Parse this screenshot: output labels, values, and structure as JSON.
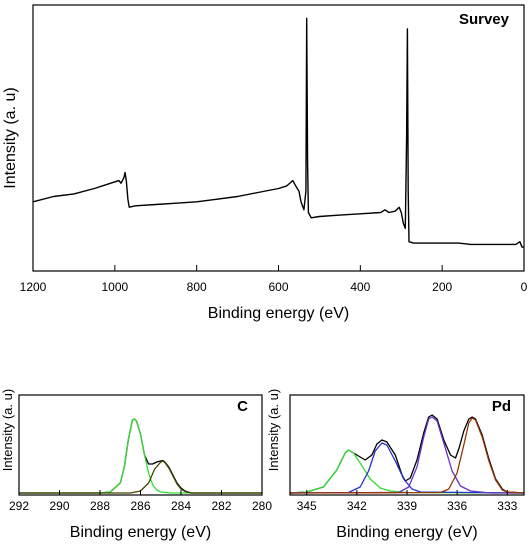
{
  "chart_data": [
    {
      "type": "line",
      "title": "Survey",
      "xlabel": "Binding energy (eV)",
      "ylabel": "Intensity (a. u)",
      "xlim": [
        1200,
        0
      ],
      "ylim": [
        0,
        100
      ],
      "x_reversed": true,
      "xticks": [
        1200,
        1000,
        800,
        600,
        400,
        200,
        0
      ],
      "series": [
        {
          "color": "#000000",
          "points": [
            [
              1200,
              26
            ],
            [
              1150,
              28
            ],
            [
              1100,
              29
            ],
            [
              1050,
              31
            ],
            [
              1010,
              33
            ],
            [
              990,
              34
            ],
            [
              985,
              33
            ],
            [
              978,
              35
            ],
            [
              975,
              37
            ],
            [
              972,
              34
            ],
            [
              968,
              27
            ],
            [
              965,
              24
            ],
            [
              950,
              24.5
            ],
            [
              900,
              25
            ],
            [
              850,
              25.5
            ],
            [
              800,
              26
            ],
            [
              750,
              27
            ],
            [
              700,
              28
            ],
            [
              650,
              29.5
            ],
            [
              600,
              31
            ],
            [
              580,
              32
            ],
            [
              565,
              34
            ],
            [
              558,
              32
            ],
            [
              550,
              30
            ],
            [
              545,
              26
            ],
            [
              538,
              23
            ],
            [
              533,
              30
            ],
            [
              531,
              95
            ],
            [
              529,
              40
            ],
            [
              527,
              22
            ],
            [
              520,
              20
            ],
            [
              500,
              20.5
            ],
            [
              450,
              21
            ],
            [
              400,
              21.5
            ],
            [
              350,
              22
            ],
            [
              340,
              23
            ],
            [
              330,
              22
            ],
            [
              315,
              22.5
            ],
            [
              305,
              24
            ],
            [
              300,
              22
            ],
            [
              295,
              18
            ],
            [
              290,
              16
            ],
            [
              287,
              50
            ],
            [
              285,
              91
            ],
            [
              283,
              30
            ],
            [
              281,
              11
            ],
            [
              270,
              10.5
            ],
            [
              250,
              10.5
            ],
            [
              200,
              10.5
            ],
            [
              160,
              10.5
            ],
            [
              130,
              10
            ],
            [
              100,
              10
            ],
            [
              50,
              10
            ],
            [
              20,
              10
            ],
            [
              10,
              11
            ],
            [
              5,
              9
            ],
            [
              0,
              9
            ]
          ]
        }
      ]
    },
    {
      "type": "line",
      "title": "C",
      "xlabel": "Binding energy (eV)",
      "ylabel": "Intensity (a. u)",
      "xlim": [
        292,
        280
      ],
      "ylim": [
        0,
        100
      ],
      "x_reversed": true,
      "xticks": [
        292,
        290,
        288,
        286,
        284,
        282,
        280
      ],
      "series": [
        {
          "color": "#000000",
          "points": [
            [
              292,
              2
            ],
            [
              289,
              2
            ],
            [
              288,
              2
            ],
            [
              287.5,
              3
            ],
            [
              287,
              12
            ],
            [
              286.8,
              28
            ],
            [
              286.6,
              55
            ],
            [
              286.4,
              75
            ],
            [
              286.3,
              76
            ],
            [
              286.2,
              74
            ],
            [
              286,
              61
            ],
            [
              285.8,
              40
            ],
            [
              285.6,
              31
            ],
            [
              285.4,
              31
            ],
            [
              285.2,
              33
            ],
            [
              285,
              34
            ],
            [
              284.9,
              34.5
            ],
            [
              284.8,
              33
            ],
            [
              284.6,
              28
            ],
            [
              284.4,
              20
            ],
            [
              284.2,
              12
            ],
            [
              284,
              7
            ],
            [
              283.8,
              4
            ],
            [
              283.5,
              2
            ],
            [
              283,
              2
            ],
            [
              280,
              2
            ]
          ]
        },
        {
          "color": "#33dd33",
          "points": [
            [
              292,
              2
            ],
            [
              288,
              2
            ],
            [
              287.5,
              3
            ],
            [
              287,
              12
            ],
            [
              286.8,
              28
            ],
            [
              286.6,
              55
            ],
            [
              286.4,
              75
            ],
            [
              286.3,
              76
            ],
            [
              286.2,
              74
            ],
            [
              286,
              61
            ],
            [
              285.8,
              40
            ],
            [
              285.6,
              22
            ],
            [
              285.4,
              10
            ],
            [
              285.2,
              5
            ],
            [
              285,
              3
            ],
            [
              284.5,
              2
            ],
            [
              280,
              2
            ]
          ]
        },
        {
          "color": "#444400",
          "points": [
            [
              292,
              2
            ],
            [
              286.5,
              2
            ],
            [
              286,
              4
            ],
            [
              285.6,
              12
            ],
            [
              285.3,
              26
            ],
            [
              285,
              33
            ],
            [
              284.9,
              34
            ],
            [
              284.8,
              32.5
            ],
            [
              284.6,
              27
            ],
            [
              284.4,
              19
            ],
            [
              284.2,
              11
            ],
            [
              284,
              6
            ],
            [
              283.8,
              3.5
            ],
            [
              283.5,
              2
            ],
            [
              280,
              2
            ]
          ]
        }
      ]
    },
    {
      "type": "line",
      "title": "Pd",
      "xlabel": "Binding energy (eV)",
      "ylabel": "Intensity (a. u)",
      "xlim": [
        346,
        332
      ],
      "ylim": [
        0,
        100
      ],
      "x_reversed": true,
      "xticks": [
        345,
        342,
        339,
        336,
        333
      ],
      "series": [
        {
          "color": "#000000",
          "points": [
            [
              346,
              2
            ],
            [
              345,
              3
            ],
            [
              344,
              8
            ],
            [
              343.2,
              25
            ],
            [
              342.7,
              42
            ],
            [
              342.5,
              45
            ],
            [
              342.2,
              42
            ],
            [
              341.5,
              35
            ],
            [
              341.1,
              40
            ],
            [
              340.8,
              51
            ],
            [
              340.5,
              55
            ],
            [
              340.2,
              53
            ],
            [
              339.7,
              40
            ],
            [
              339.3,
              20
            ],
            [
              339.1,
              14
            ],
            [
              338.8,
              17
            ],
            [
              338.4,
              35
            ],
            [
              338,
              62
            ],
            [
              337.7,
              78
            ],
            [
              337.5,
              80
            ],
            [
              337.2,
              76
            ],
            [
              336.8,
              55
            ],
            [
              336.4,
              40
            ],
            [
              336.1,
              37
            ],
            [
              335.9,
              46
            ],
            [
              335.6,
              64
            ],
            [
              335.3,
              76
            ],
            [
              335.1,
              78
            ],
            [
              334.9,
              76
            ],
            [
              334.5,
              60
            ],
            [
              334.1,
              36
            ],
            [
              333.7,
              16
            ],
            [
              333.3,
              6
            ],
            [
              333,
              3
            ],
            [
              332,
              2
            ]
          ]
        },
        {
          "color": "#33dd33",
          "points": [
            [
              346,
              2
            ],
            [
              345,
              3
            ],
            [
              344,
              8
            ],
            [
              343.2,
              25
            ],
            [
              342.7,
              42
            ],
            [
              342.5,
              45
            ],
            [
              342.2,
              42
            ],
            [
              341.8,
              32
            ],
            [
              341.2,
              16
            ],
            [
              340.6,
              7
            ],
            [
              340,
              4
            ],
            [
              339,
              2.5
            ],
            [
              332,
              2
            ]
          ]
        },
        {
          "color": "#2233cc",
          "points": [
            [
              346,
              2
            ],
            [
              342.5,
              2.5
            ],
            [
              341.8,
              8
            ],
            [
              341.3,
              24
            ],
            [
              340.9,
              44
            ],
            [
              340.5,
              52
            ],
            [
              340.2,
              50
            ],
            [
              339.7,
              34
            ],
            [
              339.2,
              16
            ],
            [
              338.7,
              6
            ],
            [
              338.2,
              3
            ],
            [
              332,
              2
            ]
          ]
        },
        {
          "color": "#6633cc",
          "points": [
            [
              346,
              2
            ],
            [
              339.5,
              2.5
            ],
            [
              338.9,
              8
            ],
            [
              338.4,
              28
            ],
            [
              338,
              58
            ],
            [
              337.7,
              76
            ],
            [
              337.5,
              78
            ],
            [
              337.2,
              74
            ],
            [
              336.8,
              52
            ],
            [
              336.3,
              24
            ],
            [
              335.8,
              9
            ],
            [
              335.2,
              4
            ],
            [
              334,
              2
            ],
            [
              332,
              2
            ]
          ]
        },
        {
          "color": "#993300",
          "points": [
            [
              346,
              2
            ],
            [
              337,
              2.5
            ],
            [
              336.5,
              6
            ],
            [
              336,
              22
            ],
            [
              335.6,
              50
            ],
            [
              335.3,
              72
            ],
            [
              335.1,
              77
            ],
            [
              334.9,
              75
            ],
            [
              334.5,
              58
            ],
            [
              334.1,
              34
            ],
            [
              333.7,
              15
            ],
            [
              333.3,
              5
            ],
            [
              333,
              3
            ],
            [
              332,
              2
            ]
          ]
        }
      ]
    }
  ]
}
